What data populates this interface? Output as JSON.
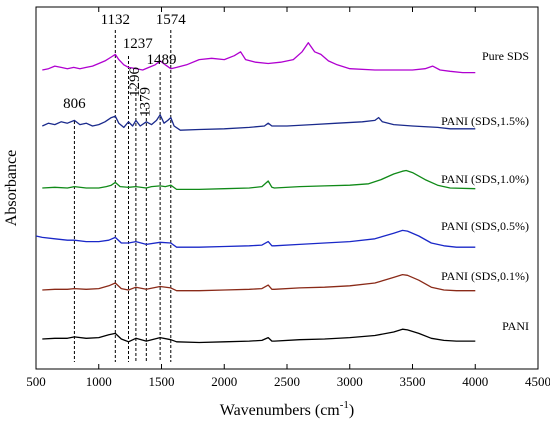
{
  "chart_data": {
    "type": "line",
    "xlabel": "Wavenumbers (cm",
    "xlabel_superscript": "-1",
    "xlabel_close": ")",
    "ylabel": "Absorbance",
    "xlim": [
      500,
      4500
    ],
    "x_ticks": [
      500,
      1000,
      1500,
      2000,
      2500,
      3000,
      3500,
      4000,
      4500
    ],
    "x_tick_labels": [
      "500",
      "1000",
      "1500",
      "2000",
      "2500",
      "3000",
      "3500",
      "4000",
      "4500"
    ],
    "y_ticks_shown": false,
    "grid": false,
    "legend": "none",
    "annotations": [
      {
        "label": "806",
        "x": 806
      },
      {
        "label": "1132",
        "x": 1132
      },
      {
        "label": "1237",
        "x": 1237
      },
      {
        "label": "1296",
        "x": 1296
      },
      {
        "label": "1379",
        "x": 1379
      },
      {
        "label": "1489",
        "x": 1489
      },
      {
        "label": "1574",
        "x": 1574
      }
    ],
    "series": [
      {
        "name": "Pure SDS",
        "color": "#b000d0",
        "x": [
          550,
          600,
          650,
          700,
          750,
          800,
          850,
          900,
          950,
          1000,
          1050,
          1100,
          1132,
          1160,
          1200,
          1237,
          1300,
          1350,
          1400,
          1450,
          1489,
          1530,
          1574,
          1620,
          1700,
          1800,
          1900,
          2000,
          2080,
          2130,
          2170,
          2250,
          2350,
          2450,
          2550,
          2620,
          2670,
          2720,
          2770,
          2830,
          2900,
          3000,
          3200,
          3500,
          3600,
          3660,
          3720,
          3800,
          3900,
          4000
        ],
        "y": [
          8.2,
          8.3,
          8.5,
          8.4,
          8.3,
          8.4,
          8.3,
          8.4,
          8.5,
          8.7,
          8.9,
          9.2,
          9.4,
          9.0,
          8.6,
          8.4,
          8.3,
          8.2,
          8.4,
          8.6,
          8.9,
          8.6,
          8.3,
          8.4,
          8.6,
          9.0,
          9.1,
          9.0,
          9.3,
          9.6,
          9.0,
          8.8,
          8.7,
          8.8,
          9.0,
          9.6,
          10.3,
          9.6,
          9.4,
          8.9,
          8.6,
          8.3,
          8.2,
          8.2,
          8.3,
          8.5,
          8.2,
          8.1,
          8.0,
          8.0
        ]
      },
      {
        "name": "PANI (SDS,1.5%)",
        "color": "#1a2a8c",
        "x": [
          550,
          600,
          650,
          700,
          750,
          806,
          850,
          900,
          950,
          1000,
          1050,
          1100,
          1132,
          1160,
          1200,
          1237,
          1270,
          1296,
          1330,
          1379,
          1420,
          1460,
          1489,
          1520,
          1550,
          1574,
          1600,
          1650,
          1800,
          2000,
          2200,
          2320,
          2350,
          2380,
          2500,
          2700,
          2900,
          3100,
          3200,
          3230,
          3260,
          3350,
          3500,
          3700,
          3800,
          4000
        ],
        "y": [
          6.2,
          6.4,
          6.3,
          6.5,
          6.4,
          6.6,
          6.3,
          6.4,
          6.2,
          6.3,
          6.5,
          6.8,
          6.9,
          6.4,
          6.1,
          6.5,
          6.2,
          6.6,
          6.2,
          6.5,
          6.3,
          6.6,
          7.0,
          6.4,
          6.6,
          6.8,
          6.2,
          5.9,
          5.95,
          6.0,
          6.1,
          6.2,
          6.4,
          6.2,
          6.2,
          6.3,
          6.4,
          6.5,
          6.6,
          6.8,
          6.5,
          6.3,
          6.2,
          6.1,
          6.0,
          6.0
        ]
      },
      {
        "name": "PANI (SDS,1.0%)",
        "color": "#108a18",
        "x": [
          550,
          650,
          750,
          806,
          900,
          1000,
          1060,
          1100,
          1132,
          1170,
          1237,
          1296,
          1379,
          1420,
          1489,
          1530,
          1574,
          1620,
          1800,
          2000,
          2200,
          2300,
          2350,
          2380,
          2400,
          2600,
          2800,
          3000,
          3150,
          3250,
          3350,
          3420,
          3450,
          3500,
          3600,
          3700,
          3800,
          4000
        ],
        "y": [
          4.6,
          4.65,
          4.6,
          4.7,
          4.6,
          4.6,
          4.7,
          4.8,
          5.0,
          4.7,
          4.65,
          4.7,
          4.6,
          4.7,
          4.75,
          4.7,
          4.8,
          4.5,
          4.5,
          4.55,
          4.6,
          4.7,
          5.1,
          4.65,
          4.6,
          4.7,
          4.75,
          4.8,
          4.9,
          5.2,
          5.6,
          5.8,
          5.85,
          5.7,
          5.2,
          4.8,
          4.6,
          4.55
        ]
      },
      {
        "name": "PANI (SDS,0.5%)",
        "color": "#1a28c8",
        "x": [
          500,
          550,
          650,
          750,
          806,
          900,
          1000,
          1080,
          1132,
          1180,
          1237,
          1296,
          1379,
          1489,
          1574,
          1620,
          1800,
          2000,
          2200,
          2300,
          2350,
          2380,
          2400,
          2600,
          2800,
          3000,
          3200,
          3350,
          3420,
          3460,
          3550,
          3650,
          3750,
          3850,
          4000
        ],
        "y": [
          3.8,
          3.7,
          3.6,
          3.5,
          3.5,
          3.4,
          3.4,
          3.5,
          3.7,
          3.3,
          3.3,
          3.4,
          3.2,
          3.35,
          3.3,
          3.0,
          3.0,
          3.05,
          3.1,
          3.15,
          3.4,
          3.1,
          3.1,
          3.2,
          3.3,
          3.4,
          3.6,
          4.0,
          4.2,
          4.15,
          3.8,
          3.3,
          3.1,
          3.0,
          3.0
        ]
      },
      {
        "name": "PANI (SDS,0.1%)",
        "color": "#8a2a18",
        "x": [
          550,
          650,
          750,
          806,
          900,
          1000,
          1080,
          1132,
          1180,
          1237,
          1296,
          1379,
          1489,
          1574,
          1620,
          1800,
          2000,
          2200,
          2300,
          2350,
          2380,
          2400,
          2600,
          2800,
          3000,
          3200,
          3350,
          3420,
          3460,
          3550,
          3650,
          3750,
          3850,
          4000
        ],
        "y": [
          1.9,
          1.95,
          1.95,
          2.0,
          1.95,
          2.0,
          2.2,
          2.4,
          2.0,
          1.9,
          2.1,
          1.95,
          2.15,
          2.05,
          1.85,
          1.85,
          1.9,
          1.95,
          2.0,
          2.25,
          1.95,
          1.95,
          2.05,
          2.1,
          2.2,
          2.4,
          2.8,
          3.0,
          2.95,
          2.6,
          2.1,
          1.9,
          1.85,
          1.85
        ]
      },
      {
        "name": "PANI",
        "color": "#000000",
        "x": [
          550,
          650,
          750,
          806,
          900,
          1000,
          1080,
          1132,
          1180,
          1237,
          1296,
          1379,
          1489,
          1574,
          1620,
          1800,
          2000,
          2200,
          2300,
          2350,
          2380,
          2400,
          2600,
          2800,
          3000,
          3200,
          3350,
          3420,
          3460,
          3550,
          3650,
          3750,
          3850,
          4000
        ],
        "y": [
          0.2,
          0.25,
          0.25,
          0.35,
          0.25,
          0.3,
          0.5,
          0.6,
          0.2,
          0.0,
          0.25,
          0.05,
          0.3,
          0.15,
          0.0,
          -0.05,
          0.0,
          0.05,
          0.1,
          0.3,
          0.05,
          0.05,
          0.15,
          0.2,
          0.3,
          0.45,
          0.7,
          0.9,
          0.85,
          0.6,
          0.25,
          0.1,
          0.05,
          0.05
        ]
      }
    ]
  }
}
